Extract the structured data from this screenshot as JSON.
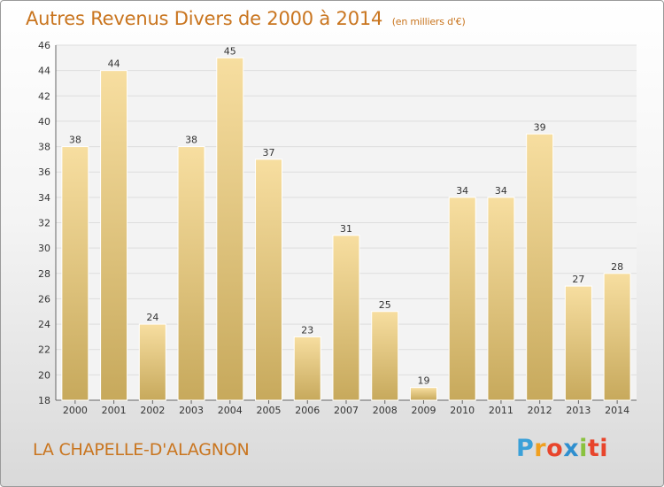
{
  "chart_data": {
    "type": "bar",
    "title": "Autres Revenus Divers de 2000 à 2014",
    "subtitle": "(en milliers d'€)",
    "categories": [
      "2000",
      "2001",
      "2002",
      "2003",
      "2004",
      "2005",
      "2006",
      "2007",
      "2008",
      "2009",
      "2010",
      "2011",
      "2012",
      "2013",
      "2014"
    ],
    "values": [
      38,
      44,
      24,
      38,
      45,
      37,
      23,
      31,
      25,
      19,
      34,
      34,
      39,
      27,
      28
    ],
    "ylim": [
      18,
      46
    ],
    "yticks": [
      18,
      20,
      22,
      24,
      26,
      28,
      30,
      32,
      34,
      36,
      38,
      40,
      42,
      44,
      46
    ],
    "grid": true,
    "bar_color": "#e6c77a",
    "grid_color": "#dddddd"
  },
  "footer": {
    "commune": "LA CHAPELLE-D'ALAGNON",
    "logo": "Proxiti"
  }
}
